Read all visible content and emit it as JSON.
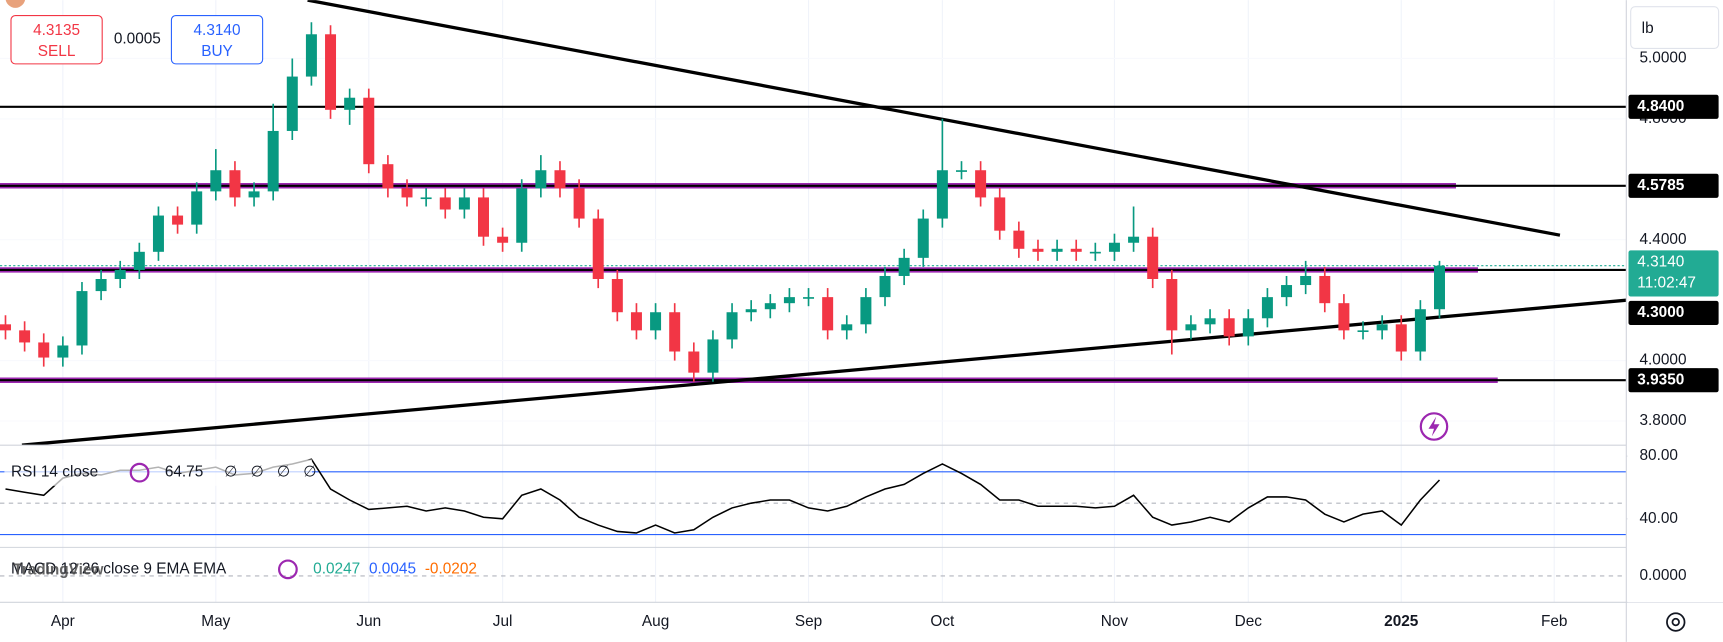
{
  "chart_data": {
    "type": "candlestick",
    "unit": "lb",
    "quote": {
      "sell": "4.3135",
      "sell_label": "SELL",
      "spread": "0.0005",
      "buy": "4.3140",
      "buy_label": "BUY"
    },
    "watermark": "TradingView",
    "categories": [
      null,
      null,
      null,
      "Apr",
      null,
      null,
      null,
      null,
      null,
      null,
      null,
      "May",
      null,
      null,
      null,
      null,
      null,
      null,
      null,
      "Jun",
      null,
      null,
      null,
      null,
      null,
      null,
      "Jul",
      null,
      null,
      null,
      null,
      null,
      null,
      null,
      "Aug",
      null,
      null,
      null,
      null,
      null,
      null,
      null,
      "Sep",
      null,
      null,
      null,
      null,
      null,
      null,
      "Oct",
      null,
      null,
      null,
      null,
      null,
      null,
      null,
      null,
      "Nov",
      null,
      null,
      null,
      null,
      null,
      null,
      "Dec",
      null,
      null,
      null,
      null,
      null,
      null,
      null,
      "2025",
      null,
      null,
      null,
      null,
      null,
      null,
      null,
      "Feb",
      null
    ],
    "open": [
      4.12,
      4.1,
      4.06,
      4.01,
      4.05,
      4.23,
      4.27,
      4.3,
      4.36,
      4.48,
      4.45,
      4.56,
      4.63,
      4.54,
      4.56,
      4.76,
      4.94,
      5.08,
      4.83,
      4.87,
      4.65,
      4.57,
      4.54,
      4.54,
      4.5,
      4.54,
      4.41,
      4.39,
      4.57,
      4.63,
      4.57,
      4.47,
      4.27,
      4.16,
      4.1,
      4.16,
      4.03,
      3.96,
      4.07,
      4.16,
      4.17,
      4.19,
      4.21,
      4.21,
      4.1,
      4.12,
      4.21,
      4.28,
      4.34,
      4.47,
      4.63,
      4.63,
      4.54,
      4.43,
      4.37,
      4.36,
      4.37,
      4.36,
      4.36,
      4.39,
      4.41,
      4.27,
      4.1,
      4.12,
      4.14,
      4.08,
      4.14,
      4.21,
      4.25,
      4.28,
      4.19,
      4.1,
      4.1,
      4.12,
      4.03,
      4.17,
      null,
      null,
      null,
      null,
      null,
      null,
      null
    ],
    "high": [
      4.15,
      4.13,
      4.09,
      4.08,
      4.26,
      4.3,
      4.33,
      4.39,
      4.51,
      4.51,
      4.59,
      4.7,
      4.66,
      4.59,
      4.85,
      5.0,
      5.12,
      5.11,
      4.9,
      4.9,
      4.68,
      4.6,
      4.57,
      4.57,
      4.57,
      4.57,
      4.44,
      4.6,
      4.68,
      4.66,
      4.6,
      4.5,
      4.3,
      4.19,
      4.19,
      4.19,
      4.06,
      4.1,
      4.19,
      4.2,
      4.22,
      4.24,
      4.24,
      4.24,
      4.15,
      4.24,
      4.31,
      4.37,
      4.5,
      4.8,
      4.66,
      4.66,
      4.57,
      4.46,
      4.4,
      4.4,
      4.4,
      4.39,
      4.42,
      4.51,
      4.44,
      4.3,
      4.15,
      4.17,
      4.17,
      4.17,
      4.24,
      4.28,
      4.33,
      4.31,
      4.22,
      4.13,
      4.15,
      4.15,
      4.2,
      4.33,
      null,
      null,
      null,
      null,
      null,
      null,
      null
    ],
    "low": [
      4.07,
      4.03,
      3.98,
      3.98,
      4.02,
      4.2,
      4.24,
      4.27,
      4.33,
      4.42,
      4.42,
      4.53,
      4.51,
      4.51,
      4.53,
      4.73,
      4.91,
      4.8,
      4.78,
      4.62,
      4.54,
      4.51,
      4.51,
      4.47,
      4.47,
      4.38,
      4.36,
      4.36,
      4.54,
      4.54,
      4.44,
      4.24,
      4.13,
      4.07,
      4.07,
      4.0,
      3.93,
      3.93,
      4.04,
      4.13,
      4.14,
      4.16,
      4.18,
      4.07,
      4.07,
      4.09,
      4.18,
      4.25,
      4.31,
      4.44,
      4.6,
      4.51,
      4.4,
      4.34,
      4.33,
      4.33,
      4.33,
      4.33,
      4.33,
      4.36,
      4.24,
      4.02,
      4.07,
      4.09,
      4.05,
      4.05,
      4.11,
      4.18,
      4.22,
      4.16,
      4.07,
      4.07,
      4.07,
      4.0,
      4.0,
      4.14,
      null,
      null,
      null,
      null,
      null,
      null,
      null
    ],
    "close": [
      4.1,
      4.06,
      4.01,
      4.05,
      4.23,
      4.27,
      4.3,
      4.36,
      4.48,
      4.45,
      4.56,
      4.63,
      4.54,
      4.56,
      4.76,
      4.94,
      5.08,
      4.83,
      4.87,
      4.65,
      4.57,
      4.54,
      4.54,
      4.5,
      4.54,
      4.41,
      4.39,
      4.57,
      4.63,
      4.57,
      4.47,
      4.27,
      4.16,
      4.1,
      4.16,
      4.03,
      3.96,
      4.07,
      4.16,
      4.17,
      4.19,
      4.21,
      4.21,
      4.1,
      4.12,
      4.21,
      4.28,
      4.34,
      4.47,
      4.63,
      4.63,
      4.54,
      4.43,
      4.37,
      4.36,
      4.37,
      4.36,
      4.36,
      4.39,
      4.41,
      4.27,
      4.1,
      4.12,
      4.14,
      4.08,
      4.14,
      4.21,
      4.25,
      4.28,
      4.19,
      4.1,
      4.1,
      4.12,
      4.03,
      4.17,
      4.314,
      null,
      null,
      null,
      null,
      null,
      null,
      null
    ],
    "up_color": "#089981",
    "down_color": "#f23645",
    "ylim": [
      3.72,
      5.193
    ],
    "yticks": [
      {
        "value": 5.0,
        "label": "5.0000"
      },
      {
        "value": 4.8,
        "label": "4.8000"
      },
      {
        "value": 4.4,
        "label": "4.4000"
      },
      {
        "value": 4.0,
        "label": "4.0000"
      },
      {
        "value": 3.8,
        "label": "3.8000"
      }
    ],
    "grid": true,
    "levels": [
      {
        "value": 4.84,
        "label": "4.8400",
        "band": false
      },
      {
        "value": 4.5785,
        "label": "4.5785",
        "band": true
      },
      {
        "value": 4.3,
        "label": "4.3000",
        "band": true
      },
      {
        "value": 3.935,
        "label": "3.9350",
        "band": true
      }
    ],
    "band_color": "#9c27b0",
    "trendlines": [
      {
        "x": [
          15.8,
          81.3
        ],
        "y": [
          5.193,
          4.415
        ]
      },
      {
        "x": [
          0.86,
          84.8
        ],
        "y": [
          3.72,
          4.2
        ]
      }
    ],
    "last_price": {
      "value": 4.314,
      "label": "4.3140",
      "countdown": "11:02:47",
      "color": "#22ab94"
    },
    "rsi": {
      "name": "RSI 14 close",
      "empty": [
        "∅",
        "∅",
        "∅",
        "∅"
      ],
      "color": "#000000",
      "band_color": "#2962ff",
      "bands": [
        70,
        50,
        30
      ],
      "ylim": [
        20.4,
        87
      ],
      "yticks": [
        {
          "value": 80,
          "label": "80.00"
        },
        {
          "value": 40,
          "label": "40.00"
        }
      ],
      "values": [
        59,
        57,
        55,
        66,
        69,
        68,
        71,
        71,
        73,
        69,
        71,
        73,
        68,
        69,
        73,
        75,
        78,
        59,
        52,
        46,
        47,
        48,
        45,
        47,
        45,
        41,
        40,
        55,
        59,
        52,
        41,
        36,
        32,
        31,
        36,
        31,
        33,
        41,
        47,
        50,
        52,
        52,
        47,
        45,
        48,
        54,
        59,
        62,
        69,
        75,
        69,
        62,
        52,
        52,
        48,
        48,
        48,
        47,
        48,
        55,
        41,
        36,
        38,
        41,
        38,
        47,
        54,
        54,
        52,
        43,
        38,
        43,
        45,
        36,
        52,
        64.75,
        null,
        null,
        null,
        null,
        null,
        null,
        null
      ]
    },
    "macd": {
      "name": "MACD 12 26 close 9 EMA EMA",
      "values": [
        "0.0247",
        "0.0045",
        "-0.0202"
      ],
      "colors": [
        "#22ab94",
        "#2962ff",
        "#ff6d00"
      ],
      "ylim": [
        -0.05,
        0.05
      ],
      "yticks": [
        {
          "value": 0,
          "label": "0.0000"
        }
      ]
    }
  }
}
